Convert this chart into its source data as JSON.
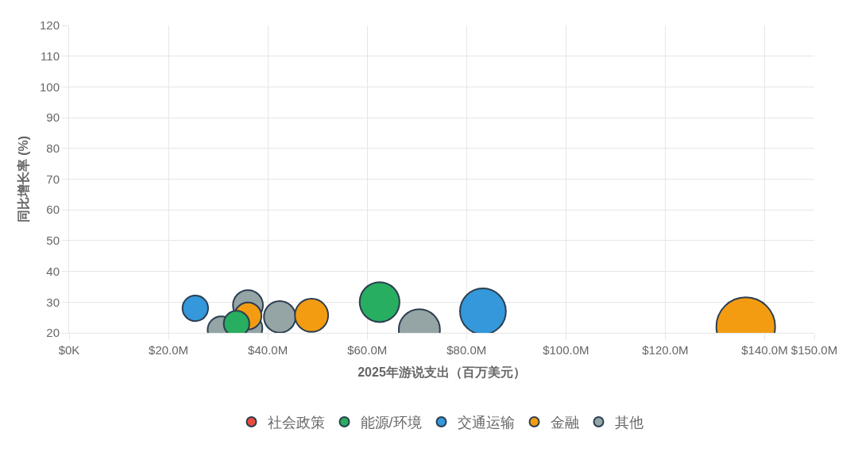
{
  "chart_data": {
    "type": "bubble",
    "xlabel": "2025年游说支出（百万美元）",
    "ylabel": "同比增长率 (%)",
    "xlim": [
      0,
      150
    ],
    "xticks": [
      {
        "value": 0,
        "label": "$0K"
      },
      {
        "value": 20,
        "label": "$20.0M"
      },
      {
        "value": 40,
        "label": "$40.0M"
      },
      {
        "value": 60,
        "label": "$60.0M"
      },
      {
        "value": 80,
        "label": "$80.0M"
      },
      {
        "value": 100,
        "label": "$100.0M"
      },
      {
        "value": 120,
        "label": "$120.0M"
      },
      {
        "value": 140,
        "label": "$140.0M"
      },
      {
        "value": 150,
        "label": "$150.0M"
      }
    ],
    "ylim": [
      20,
      120
    ],
    "yticks": [
      20,
      30,
      40,
      50,
      60,
      70,
      80,
      90,
      100,
      110,
      120
    ],
    "grid": true,
    "legend": "bottom",
    "marker": "circle",
    "series": [
      {
        "name": "社会政策",
        "color": "#e74c3c"
      },
      {
        "name": "能源/环境",
        "color": "#27ae60",
        "x": [
          33.7,
          62.5
        ],
        "values": [
          23,
          30
        ],
        "sizes": [
          0.19,
          0.46
        ]
      },
      {
        "name": "交通运输",
        "color": "#3498db",
        "x": [
          25.4,
          83.3
        ],
        "values": [
          28,
          27
        ],
        "sizes": [
          0.19,
          0.61
        ]
      },
      {
        "name": "金融",
        "color": "#f39c12",
        "x": [
          36,
          48.8,
          136.2
        ],
        "values": [
          25.5,
          25.7,
          22
        ],
        "sizes": [
          0.21,
          0.32,
          1
        ]
      },
      {
        "name": "其他",
        "color": "#95a5a6",
        "x": [
          36,
          36,
          30.6,
          42.4,
          70.5
        ],
        "values": [
          29,
          21.5,
          21,
          25.2,
          21
        ],
        "sizes": [
          0.26,
          0.24,
          0.21,
          0.29,
          0.49
        ]
      }
    ]
  }
}
